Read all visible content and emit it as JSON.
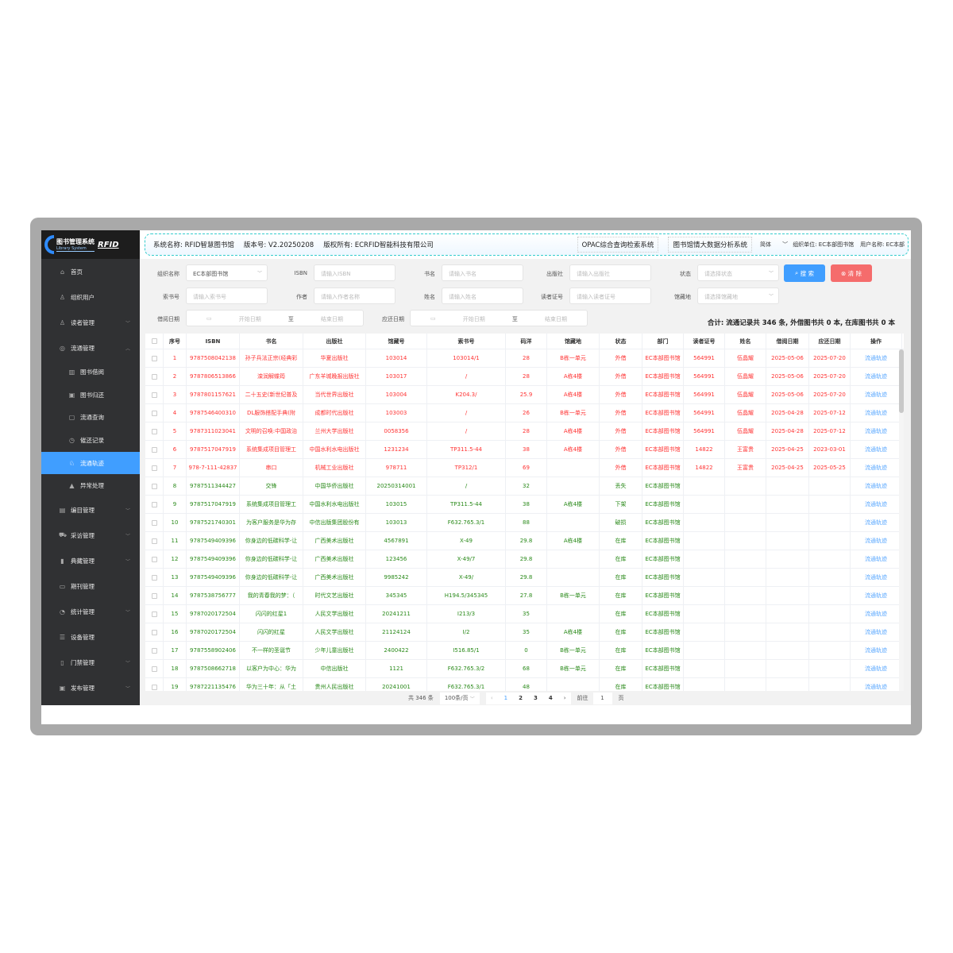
{
  "colors": {
    "accent": "#409eff",
    "danger": "#f56c6c",
    "overdue": "#ff3333",
    "normal": "#2a8a1a",
    "link": "#5aa8ff"
  },
  "logo": {
    "title": "图书管理系统",
    "subtitle": "Library System",
    "brand": "RFID"
  },
  "header": {
    "system_name": "系统名称: RFID智慧图书馆",
    "version": "版本号: V2.20250208",
    "copyright": "版权所有: ECRFID智能科技有限公司",
    "opac": "OPAC综合查询检索系统",
    "analytics": "图书馆情大数据分析系统",
    "lang": "简体",
    "org": "组织单位: EC本部图书馆",
    "user": "用户名称: EC本部"
  },
  "sidebar": {
    "items": [
      {
        "label": "首页",
        "icon": "home-icon",
        "glyph": "⌂"
      },
      {
        "label": "组织用户",
        "icon": "org-icon",
        "glyph": "♙"
      },
      {
        "label": "读者管理",
        "icon": "user-icon",
        "glyph": "♙",
        "arrow": "﹀"
      },
      {
        "label": "流通管理",
        "icon": "circulation-icon",
        "glyph": "◎",
        "arrow": "︿"
      },
      {
        "label": "图书借阅",
        "icon": "borrow-icon",
        "glyph": "▥",
        "sub": true
      },
      {
        "label": "图书归还",
        "icon": "return-icon",
        "glyph": "▣",
        "sub": true
      },
      {
        "label": "流通查询",
        "icon": "clipboard-icon",
        "glyph": "▢",
        "sub": true
      },
      {
        "label": "催还记录",
        "icon": "alarm-icon",
        "glyph": "◷",
        "sub": true
      },
      {
        "label": "流通轨迹",
        "icon": "track-icon",
        "glyph": "♘",
        "sub": true,
        "active": true
      },
      {
        "label": "异常处理",
        "icon": "warning-icon",
        "glyph": "▲",
        "sub": true
      },
      {
        "label": "编目管理",
        "icon": "catalog-icon",
        "glyph": "▤",
        "arrow": "﹀"
      },
      {
        "label": "采访管理",
        "icon": "cart-icon",
        "glyph": "⛟",
        "arrow": "﹀"
      },
      {
        "label": "典藏管理",
        "icon": "collection-icon",
        "glyph": "▮",
        "arrow": "﹀"
      },
      {
        "label": "期刊管理",
        "icon": "journal-icon",
        "glyph": "▭"
      },
      {
        "label": "统计管理",
        "icon": "chart-icon",
        "glyph": "◔",
        "arrow": "﹀"
      },
      {
        "label": "设备管理",
        "icon": "device-icon",
        "glyph": "☰"
      },
      {
        "label": "门禁管理",
        "icon": "gate-icon",
        "glyph": "▯",
        "arrow": "﹀"
      },
      {
        "label": "发布管理",
        "icon": "publish-icon",
        "glyph": "▣",
        "arrow": "﹀"
      }
    ]
  },
  "filters": {
    "org": {
      "label": "组织名称",
      "value": "EC本部图书馆"
    },
    "isbn": {
      "label": "ISBN",
      "placeholder": "请输入ISBN"
    },
    "title": {
      "label": "书名",
      "placeholder": "请输入书名"
    },
    "publisher": {
      "label": "出版社",
      "placeholder": "请输入出版社"
    },
    "status": {
      "label": "状态",
      "placeholder": "请选择状态"
    },
    "callno": {
      "label": "索书号",
      "placeholder": "请输入索书号"
    },
    "author": {
      "label": "作者",
      "placeholder": "请输入作者名称"
    },
    "name": {
      "label": "姓名",
      "placeholder": "请输入姓名"
    },
    "card": {
      "label": "读者证号",
      "placeholder": "请输入读者证号"
    },
    "location": {
      "label": "馆藏地",
      "placeholder": "请选择馆藏地"
    },
    "borrow_date": {
      "label": "借阅日期",
      "start": "开始日期",
      "sep": "至",
      "end": "结束日期"
    },
    "due_date": {
      "label": "应还日期",
      "start": "开始日期",
      "sep": "至",
      "end": "结束日期"
    },
    "search_label": "搜 索",
    "clear_label": "清 除"
  },
  "summary": "合计: 流通记录共 346 条, 外借图书共 0 本, 在库图书共 0 本",
  "table": {
    "columns": [
      "序号",
      "ISBN",
      "书名",
      "出版社",
      "馆藏号",
      "索书号",
      "码洋",
      "馆藏地",
      "状态",
      "部门",
      "读者证号",
      "姓名",
      "借阅日期",
      "应还日期",
      "操作"
    ],
    "action_label": "流通轨迹",
    "rows": [
      [
        "1",
        "9787508042138",
        "孙子兵法正宗(经典彩",
        "华夏出版社",
        "103014",
        "103014/1",
        "28",
        "B栋一单元",
        "外借",
        "EC本部图书馆",
        "564991",
        "伍晶耀",
        "2025-05-06",
        "2025-07-20",
        "overdue"
      ],
      [
        "2",
        "9787806513866",
        "滦润解蝶筠",
        "广东羊城晚报出版社",
        "103017",
        "/",
        "28",
        "A栋4楼",
        "外借",
        "EC本部图书馆",
        "564991",
        "伍晶耀",
        "2025-05-06",
        "2025-07-20",
        "overdue"
      ],
      [
        "3",
        "9787801157621",
        "二十五史(新世纪普及",
        "当代世界出版社",
        "103004",
        "K204.3/",
        "25.9",
        "A栋4楼",
        "外借",
        "EC本部图书馆",
        "564991",
        "伍晶耀",
        "2025-05-06",
        "2025-07-20",
        "overdue"
      ],
      [
        "4",
        "9787546400310",
        "DL服饰搭配手典(附",
        "成都时代出版社",
        "103003",
        "/",
        "26",
        "B栋一单元",
        "外借",
        "EC本部图书馆",
        "564991",
        "伍晶耀",
        "2025-04-28",
        "2025-07-12",
        "overdue"
      ],
      [
        "5",
        "9787311023041",
        "文明的召唤:中国政治",
        "兰州大学出版社",
        "0058356",
        "/",
        "28",
        "A栋4楼",
        "外借",
        "EC本部图书馆",
        "564991",
        "伍晶耀",
        "2025-04-28",
        "2025-07-12",
        "overdue"
      ],
      [
        "6",
        "9787517047919",
        "系统集成项目管理工",
        "中国水利水电出版社",
        "1231234",
        "TP311.5-44",
        "38",
        "A栋4楼",
        "外借",
        "EC本部图书馆",
        "14822",
        "王富贵",
        "2025-04-25",
        "2023-03-01",
        "overdue"
      ],
      [
        "7",
        "978-7-111-42837",
        "串口",
        "机械工业出版社",
        "978711",
        "TP312/1",
        "69",
        "",
        "外借",
        "EC本部图书馆",
        "14822",
        "王富贵",
        "2025-04-25",
        "2025-05-25",
        "overdue"
      ],
      [
        "8",
        "9787511344427",
        "交锋",
        "中国华侨出版社",
        "20250314001",
        "/",
        "32",
        "",
        "丢失",
        "EC本部图书馆",
        "",
        "",
        "",
        "",
        "normal"
      ],
      [
        "9",
        "9787517047919",
        "系统集成项目管理工",
        "中国水利水电出版社",
        "103015",
        "TP311.5-44",
        "38",
        "A栋4楼",
        "下架",
        "EC本部图书馆",
        "",
        "",
        "",
        "",
        "normal"
      ],
      [
        "10",
        "9787521740301",
        "为客户服务是华为存",
        "中信出版集团股份有",
        "103013",
        "F632.765.3/1",
        "88",
        "",
        "破损",
        "EC本部图书馆",
        "",
        "",
        "",
        "",
        "normal"
      ],
      [
        "11",
        "9787549409396",
        "你身边的低碳科学-让",
        "广西美术出版社",
        "4567891",
        "X-49",
        "29.8",
        "A栋4楼",
        "在库",
        "EC本部图书馆",
        "",
        "",
        "",
        "",
        "normal"
      ],
      [
        "12",
        "9787549409396",
        "你身边的低碳科学-让",
        "广西美术出版社",
        "123456",
        "X-49/7",
        "29.8",
        "",
        "在库",
        "EC本部图书馆",
        "",
        "",
        "",
        "",
        "normal"
      ],
      [
        "13",
        "9787549409396",
        "你身边的低碳科学-让",
        "广西美术出版社",
        "9985242",
        "X-49/",
        "29.8",
        "",
        "在库",
        "EC本部图书馆",
        "",
        "",
        "",
        "",
        "normal"
      ],
      [
        "14",
        "9787538756777",
        "我的青春我的梦：（",
        "时代文艺出版社",
        "345345",
        "H194.5/345345",
        "27.8",
        "B栋一单元",
        "在库",
        "EC本部图书馆",
        "",
        "",
        "",
        "",
        "normal"
      ],
      [
        "15",
        "9787020172504",
        "闪闪的红星1",
        "人民文学出版社",
        "20241211",
        "I213/3",
        "35",
        "",
        "在库",
        "EC本部图书馆",
        "",
        "",
        "",
        "",
        "normal"
      ],
      [
        "16",
        "9787020172504",
        "闪闪的红星",
        "人民文学出版社",
        "21124124",
        "I/2",
        "35",
        "A栋4楼",
        "在库",
        "EC本部图书馆",
        "",
        "",
        "",
        "",
        "normal"
      ],
      [
        "17",
        "9787558902406",
        "不一样的圣诞节",
        "少年儿童出版社",
        "2400422",
        "I516.85/1",
        "0",
        "B栋一单元",
        "在库",
        "EC本部图书馆",
        "",
        "",
        "",
        "",
        "normal"
      ],
      [
        "18",
        "9787508662718",
        "以客户为中心：华为",
        "中信出版社",
        "1121",
        "F632.765.3/2",
        "68",
        "B栋一单元",
        "在库",
        "EC本部图书馆",
        "",
        "",
        "",
        "",
        "normal"
      ],
      [
        "19",
        "9787221135476",
        "华为三十年：从「土",
        "贵州人民出版社",
        "20241001",
        "F632.765.3/1",
        "48",
        "",
        "在库",
        "EC本部图书馆",
        "",
        "",
        "",
        "",
        "normal"
      ]
    ]
  },
  "pagination": {
    "total": "共 346 条",
    "page_size": "100条/页",
    "pages": [
      "1",
      "2",
      "3",
      "4"
    ],
    "current": "1",
    "goto_label": "前往",
    "goto_value": "1",
    "page_suffix": "页"
  }
}
